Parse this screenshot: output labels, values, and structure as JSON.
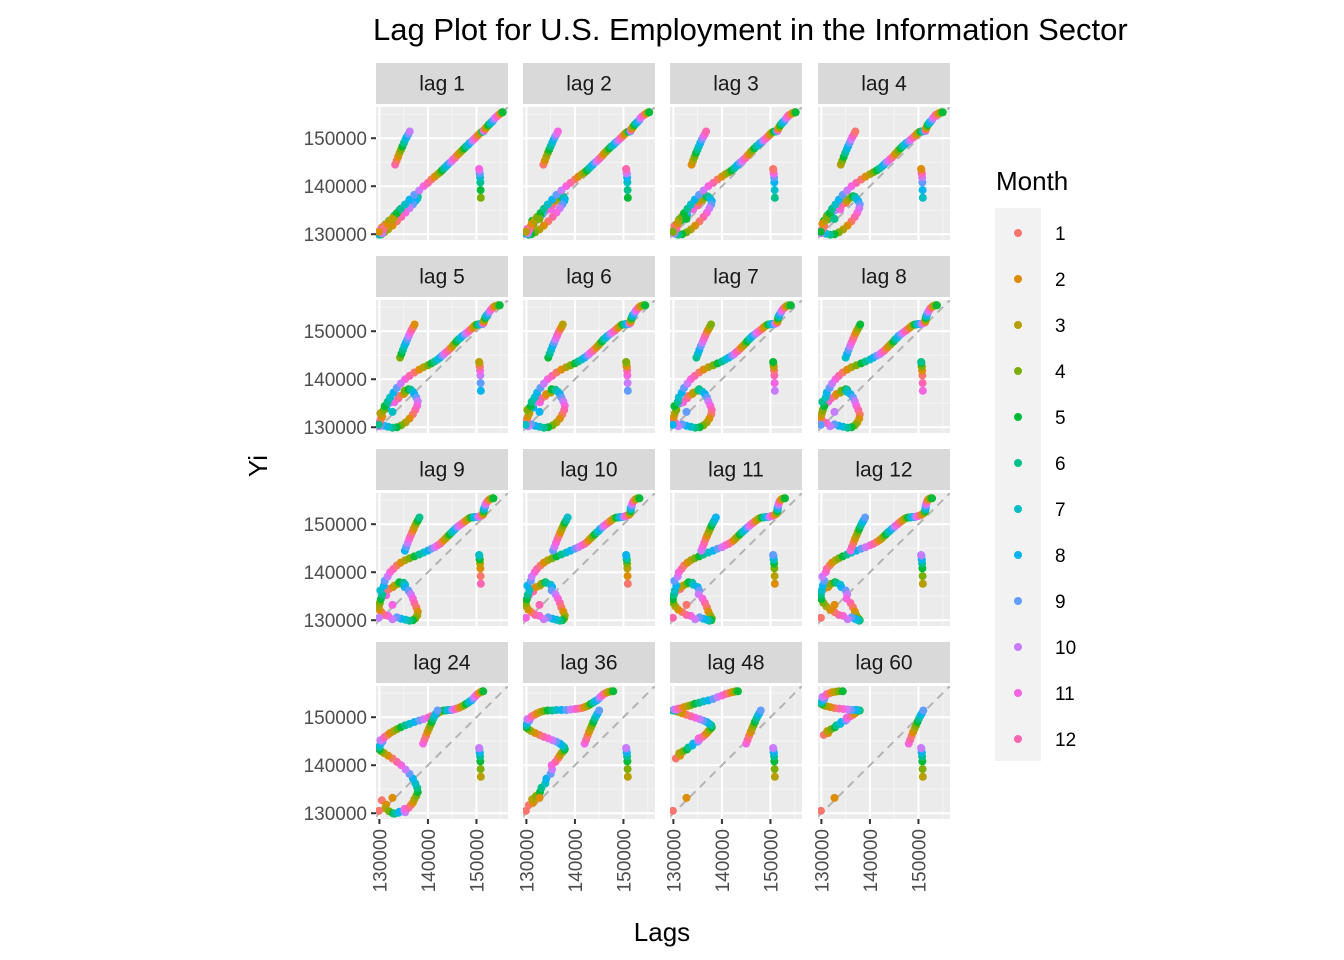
{
  "chart_data": {
    "type": "scatter",
    "title": "Lag Plot for U.S. Employment in the Information Sector",
    "xlabel": "Lags",
    "ylabel": "Yi",
    "xlim": [
      129300,
      156500
    ],
    "ylim": [
      128800,
      156500
    ],
    "xticks": [
      "130000",
      "140000",
      "150000"
    ],
    "xtick_values": [
      130000,
      140000,
      150000
    ],
    "yticks": [
      "130000",
      "140000",
      "150000"
    ],
    "ytick_values": [
      130000,
      140000,
      150000
    ],
    "grid": true,
    "reference_line": "y = x (dashed)",
    "legend": {
      "title": "Month",
      "position": "right",
      "entries": [
        "1",
        "2",
        "3",
        "4",
        "5",
        "6",
        "7",
        "8",
        "9",
        "10",
        "11",
        "12"
      ],
      "colors": [
        "#F8766D",
        "#DE8C00",
        "#B79F00",
        "#7CAE00",
        "#00BA38",
        "#00C08B",
        "#00BFC4",
        "#00B4F0",
        "#619CFF",
        "#C77CFF",
        "#F564E3",
        "#FF64B0"
      ]
    },
    "panels": [
      "lag 1",
      "lag 2",
      "lag 3",
      "lag 4",
      "lag 5",
      "lag 6",
      "lag 7",
      "lag 8",
      "lag 9",
      "lag 10",
      "lag 11",
      "lag 12",
      "lag 24",
      "lag 36",
      "lag 48",
      "lag 60"
    ],
    "lags": [
      1,
      2,
      3,
      4,
      5,
      6,
      7,
      8,
      9,
      10,
      11,
      12,
      24,
      36,
      48,
      60
    ],
    "series_monthly": [
      130500,
      131400,
      131200,
      132000,
      132800,
      133100,
      133900,
      134100,
      135000,
      135300,
      135200,
      136000,
      136500,
      136900,
      137200,
      137600,
      137900,
      137800,
      137400,
      136900,
      136200,
      135400,
      134500,
      133600,
      132700,
      131800,
      131000,
      130400,
      130000,
      129900,
      130100,
      130300,
      130600,
      130200,
      130900,
      131100,
      131700,
      132200,
      132900,
      133600,
      134400,
      135300,
      136200,
      137200,
      138200,
      139100,
      140000,
      140700,
      141400,
      142000,
      142500,
      142900,
      143300,
      143700,
      144100,
      144500,
      144900,
      145200,
      145600,
      145900,
      146300,
      146700,
      147100,
      147500,
      147900,
      148300,
      148600,
      149000,
      149300,
      149600,
      149900,
      150200,
      150500,
      150800,
      151100,
      151300,
      151400,
      151400,
      151500,
      151500,
      151500,
      151600,
      151700,
      151800,
      151900,
      152100,
      152300,
      152500,
      152800,
      153000,
      153300,
      153500,
      153800,
      154200,
      154500,
      154800,
      155000,
      155200,
      155300,
      155400,
      155400,
      130500,
      133200,
      137600,
      139200,
      140800,
      141800,
      142600,
      142700,
      143400,
      143600,
      144500,
      145300,
      146100,
      146900,
      147600,
      148300,
      149000,
      149700,
      150300,
      150800,
      151400
    ]
  }
}
